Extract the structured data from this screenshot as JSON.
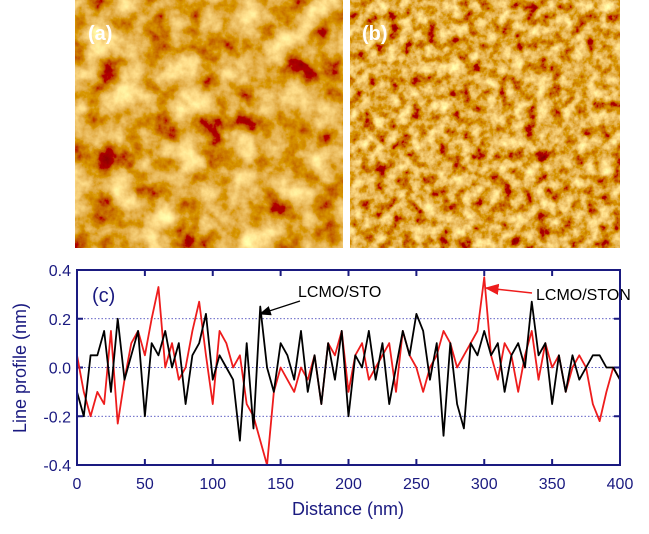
{
  "panels": {
    "a": "(a)",
    "b": "(b)"
  },
  "chart_data": {
    "type": "line",
    "panel_label": "(c)",
    "x_label": "Distance (nm)",
    "y_label": "Line profile (nm)",
    "xlim": [
      0,
      400
    ],
    "ylim": [
      -0.4,
      0.4
    ],
    "xticks": [
      0,
      50,
      100,
      150,
      200,
      250,
      300,
      350,
      400
    ],
    "yticks": [
      -0.4,
      -0.2,
      {
        "value": 0,
        "label": "0.0"
      },
      0.2,
      0.4
    ],
    "grid": true,
    "x": [
      0,
      5,
      10,
      15,
      20,
      25,
      30,
      35,
      40,
      45,
      50,
      55,
      60,
      65,
      70,
      75,
      80,
      85,
      90,
      95,
      100,
      105,
      110,
      115,
      120,
      125,
      130,
      135,
      140,
      145,
      150,
      155,
      160,
      165,
      170,
      175,
      180,
      185,
      190,
      195,
      200,
      205,
      210,
      215,
      220,
      225,
      230,
      235,
      240,
      245,
      250,
      255,
      260,
      265,
      270,
      275,
      280,
      285,
      290,
      295,
      300,
      305,
      310,
      315,
      320,
      325,
      330,
      335,
      340,
      345,
      350,
      355,
      360,
      365,
      370,
      375,
      380,
      385,
      390,
      395,
      400
    ],
    "series": [
      {
        "name": "LCMO/STO",
        "color": "#000000",
        "values": [
          -0.1,
          -0.2,
          0.05,
          0.05,
          0.15,
          -0.1,
          0.2,
          -0.05,
          0.05,
          0.15,
          -0.2,
          0.1,
          0.05,
          0.15,
          0.0,
          0.1,
          -0.15,
          0.05,
          0.1,
          0.22,
          -0.05,
          0.05,
          0.0,
          -0.05,
          -0.3,
          0.1,
          -0.25,
          0.25,
          0.0,
          -0.1,
          0.1,
          0.05,
          -0.05,
          0.15,
          -0.1,
          0.05,
          -0.15,
          0.1,
          -0.05,
          0.15,
          -0.2,
          0.05,
          0.0,
          0.15,
          -0.05,
          0.1,
          -0.15,
          0.0,
          0.15,
          0.05,
          0.22,
          0.15,
          -0.05,
          0.1,
          -0.28,
          0.1,
          -0.15,
          -0.25,
          0.1,
          0.05,
          0.15,
          0.05,
          0.1,
          -0.1,
          0.05,
          0.1,
          0.0,
          0.27,
          0.05,
          0.1,
          -0.15,
          0.05,
          -0.1,
          0.05,
          -0.05,
          0.0,
          0.05,
          0.05,
          0.0,
          0.0,
          -0.05
        ]
      },
      {
        "name": "LCMO/STON",
        "color": "#ee1c1c",
        "values": [
          0.05,
          -0.1,
          -0.2,
          -0.1,
          -0.15,
          0.15,
          -0.23,
          -0.05,
          0.1,
          0.15,
          0.05,
          0.2,
          0.33,
          0.0,
          0.1,
          -0.05,
          0.0,
          0.15,
          0.27,
          0.05,
          -0.15,
          0.15,
          0.1,
          0.0,
          0.05,
          -0.15,
          -0.2,
          -0.3,
          -0.4,
          -0.1,
          0.0,
          -0.05,
          -0.1,
          0.0,
          -0.05,
          0.05,
          -0.15,
          0.1,
          0.05,
          0.15,
          -0.1,
          0.05,
          0.1,
          -0.05,
          0.0,
          0.05,
          0.1,
          -0.1,
          0.15,
          0.05,
          0.0,
          -0.1,
          0.0,
          0.05,
          0.15,
          0.1,
          0.0,
          0.05,
          0.1,
          0.15,
          0.37,
          0.05,
          -0.05,
          0.1,
          0.05,
          -0.1,
          0.05,
          0.15,
          -0.05,
          0.1,
          0.0,
          0.05,
          -0.1,
          0.0,
          0.05,
          0.0,
          -0.15,
          -0.22,
          -0.1,
          0.0,
          -0.05
        ]
      }
    ]
  }
}
